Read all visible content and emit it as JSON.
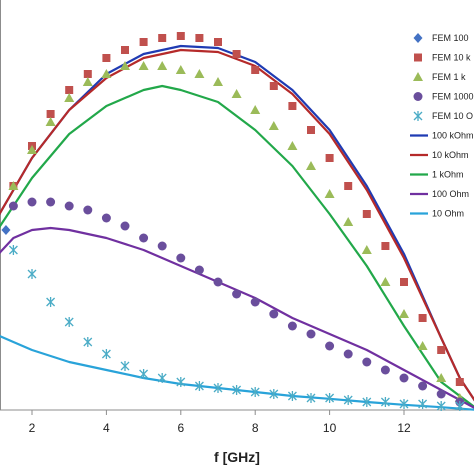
{
  "chart_data": {
    "type": "scatter",
    "title": "",
    "xlabel": "f [GHz]",
    "ylabel": "",
    "xlim": [
      1,
      14
    ],
    "ylim": [
      0,
      1
    ],
    "grid": false,
    "legend_position": "top-right",
    "x_ticks": [
      2,
      4,
      6,
      8,
      10,
      12
    ],
    "series": [
      {
        "name": "FEM 100",
        "kind": "markers",
        "marker": "diamond",
        "color": "#4472c4",
        "x": [
          1.0,
          1.3
        ],
        "y": [
          0.37,
          0.45
        ]
      },
      {
        "name": "FEM 10 k",
        "kind": "markers",
        "marker": "square",
        "color": "#c0504d",
        "x": [
          1.0,
          1.5,
          2.0,
          2.5,
          3.0,
          3.5,
          4.0,
          4.5,
          5.0,
          5.5,
          6.0,
          6.5,
          7.0,
          7.5,
          8.0,
          8.5,
          9.0,
          9.5,
          10.0,
          10.5,
          11.0,
          11.5,
          12.0,
          12.5,
          13.0,
          13.5,
          14.0
        ],
        "y": [
          0.47,
          0.56,
          0.66,
          0.74,
          0.8,
          0.84,
          0.88,
          0.9,
          0.92,
          0.93,
          0.935,
          0.93,
          0.92,
          0.89,
          0.85,
          0.81,
          0.76,
          0.7,
          0.63,
          0.56,
          0.49,
          0.41,
          0.32,
          0.23,
          0.15,
          0.07,
          0.01
        ]
      },
      {
        "name": "FEM 1 k",
        "kind": "markers",
        "marker": "triangle",
        "color": "#9bbb59",
        "x": [
          1.0,
          1.5,
          2.0,
          2.5,
          3.0,
          3.5,
          4.0,
          4.5,
          5.0,
          5.5,
          6.0,
          6.5,
          7.0,
          7.5,
          8.0,
          8.5,
          9.0,
          9.5,
          10.0,
          10.5,
          11.0,
          11.5,
          12.0,
          12.5,
          13.0,
          13.5
        ],
        "y": [
          0.45,
          0.56,
          0.65,
          0.72,
          0.78,
          0.82,
          0.84,
          0.86,
          0.86,
          0.86,
          0.85,
          0.84,
          0.82,
          0.79,
          0.75,
          0.71,
          0.66,
          0.61,
          0.54,
          0.47,
          0.4,
          0.32,
          0.24,
          0.16,
          0.08,
          0.03
        ]
      },
      {
        "name": "FEM 1000",
        "kind": "markers",
        "marker": "circle",
        "color": "#6a4e9c",
        "x": [
          1.0,
          1.5,
          2.0,
          2.5,
          3.0,
          3.5,
          4.0,
          4.5,
          5.0,
          5.5,
          6.0,
          6.5,
          7.0,
          7.5,
          8.0,
          8.5,
          9.0,
          9.5,
          10.0,
          10.5,
          11.0,
          11.5,
          12.0,
          12.5,
          13.0,
          13.5,
          14.0
        ],
        "y": [
          0.48,
          0.51,
          0.52,
          0.52,
          0.51,
          0.5,
          0.48,
          0.46,
          0.43,
          0.41,
          0.38,
          0.35,
          0.32,
          0.29,
          0.27,
          0.24,
          0.21,
          0.19,
          0.16,
          0.14,
          0.12,
          0.1,
          0.08,
          0.06,
          0.04,
          0.02,
          0.01
        ]
      },
      {
        "name": "FEM 10 O",
        "kind": "markers",
        "marker": "asterisk",
        "color": "#4bacc6",
        "x": [
          1.0,
          1.5,
          2.0,
          2.5,
          3.0,
          3.5,
          4.0,
          4.5,
          5.0,
          5.5,
          6.0,
          6.5,
          7.0,
          7.5,
          8.0,
          8.5,
          9.0,
          9.5,
          10.0,
          10.5,
          11.0,
          11.5,
          12.0,
          12.5,
          13.0,
          13.5,
          14.0
        ],
        "y": [
          0.42,
          0.4,
          0.34,
          0.27,
          0.22,
          0.17,
          0.14,
          0.11,
          0.09,
          0.08,
          0.07,
          0.06,
          0.055,
          0.05,
          0.045,
          0.04,
          0.035,
          0.03,
          0.03,
          0.025,
          0.02,
          0.02,
          0.015,
          0.015,
          0.01,
          0.01,
          0.005
        ]
      },
      {
        "name": "100 kOhm",
        "kind": "line",
        "color": "#1f3bb3",
        "x": [
          1.0,
          2.0,
          3.0,
          4.0,
          5.0,
          6.0,
          7.0,
          8.0,
          9.0,
          10.0,
          11.0,
          12.0,
          13.0,
          13.5,
          14.0
        ],
        "y": [
          0.47,
          0.63,
          0.75,
          0.84,
          0.89,
          0.91,
          0.905,
          0.87,
          0.8,
          0.7,
          0.56,
          0.39,
          0.18,
          0.08,
          0.01
        ]
      },
      {
        "name": "10 kOhm",
        "kind": "line",
        "color": "#b52a2a",
        "x": [
          1.0,
          2.0,
          3.0,
          4.0,
          5.0,
          6.0,
          7.0,
          8.0,
          9.0,
          10.0,
          11.0,
          12.0,
          13.0,
          13.5,
          14.0
        ],
        "y": [
          0.47,
          0.63,
          0.75,
          0.83,
          0.88,
          0.9,
          0.895,
          0.86,
          0.79,
          0.69,
          0.55,
          0.38,
          0.18,
          0.08,
          0.01
        ]
      },
      {
        "name": "1 kOhm",
        "kind": "line",
        "color": "#22a84a",
        "x": [
          1.0,
          2.0,
          3.0,
          4.0,
          5.0,
          5.5,
          6.0,
          7.0,
          8.0,
          9.0,
          10.0,
          11.0,
          12.0,
          13.0,
          14.0
        ],
        "y": [
          0.44,
          0.58,
          0.69,
          0.76,
          0.8,
          0.81,
          0.8,
          0.77,
          0.7,
          0.61,
          0.49,
          0.36,
          0.21,
          0.07,
          0.0
        ]
      },
      {
        "name": "100 Ohm",
        "kind": "line",
        "color": "#7030a0",
        "x": [
          1.0,
          1.5,
          2.0,
          2.5,
          3.0,
          4.0,
          5.0,
          6.0,
          7.0,
          8.0,
          9.0,
          10.0,
          11.0,
          12.0,
          13.0,
          14.0
        ],
        "y": [
          0.38,
          0.43,
          0.45,
          0.455,
          0.45,
          0.43,
          0.4,
          0.36,
          0.32,
          0.28,
          0.23,
          0.19,
          0.15,
          0.1,
          0.05,
          0.0
        ]
      },
      {
        "name": "10 Ohm",
        "kind": "line",
        "color": "#29a3d9",
        "x": [
          1.0,
          1.5,
          2.0,
          3.0,
          4.0,
          5.0,
          6.0,
          7.0,
          8.0,
          9.0,
          10.0,
          11.0,
          12.0,
          13.0,
          14.0
        ],
        "y": [
          0.19,
          0.17,
          0.15,
          0.12,
          0.1,
          0.08,
          0.065,
          0.055,
          0.045,
          0.035,
          0.028,
          0.02,
          0.013,
          0.007,
          0.0
        ]
      }
    ]
  }
}
